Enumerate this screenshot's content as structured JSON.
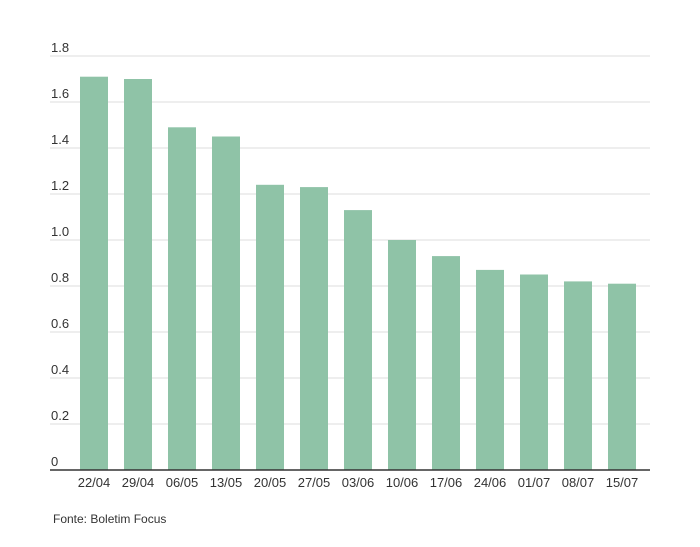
{
  "chart_data": {
    "type": "bar",
    "categories": [
      "22/04",
      "29/04",
      "06/05",
      "13/05",
      "20/05",
      "27/05",
      "03/06",
      "10/06",
      "17/06",
      "24/06",
      "01/07",
      "08/07",
      "15/07"
    ],
    "values": [
      1.71,
      1.7,
      1.49,
      1.45,
      1.24,
      1.23,
      1.13,
      1.0,
      0.93,
      0.87,
      0.85,
      0.82,
      0.81
    ],
    "ylim": [
      0,
      1.8
    ],
    "yticks": [
      0,
      0.2,
      0.4,
      0.6,
      0.8,
      1.0,
      1.2,
      1.4,
      1.6,
      1.8
    ],
    "ytick_labels": [
      "0",
      "0.2",
      "0.4",
      "0.6",
      "0.8",
      "1.0",
      "1.2",
      "1.4",
      "1.6",
      "1.8"
    ],
    "grid": true,
    "bar_color": "#8fc3a7",
    "grid_color": "#dddddd",
    "axis_color": "#333333"
  },
  "source": "Fonte: Boletim Focus"
}
